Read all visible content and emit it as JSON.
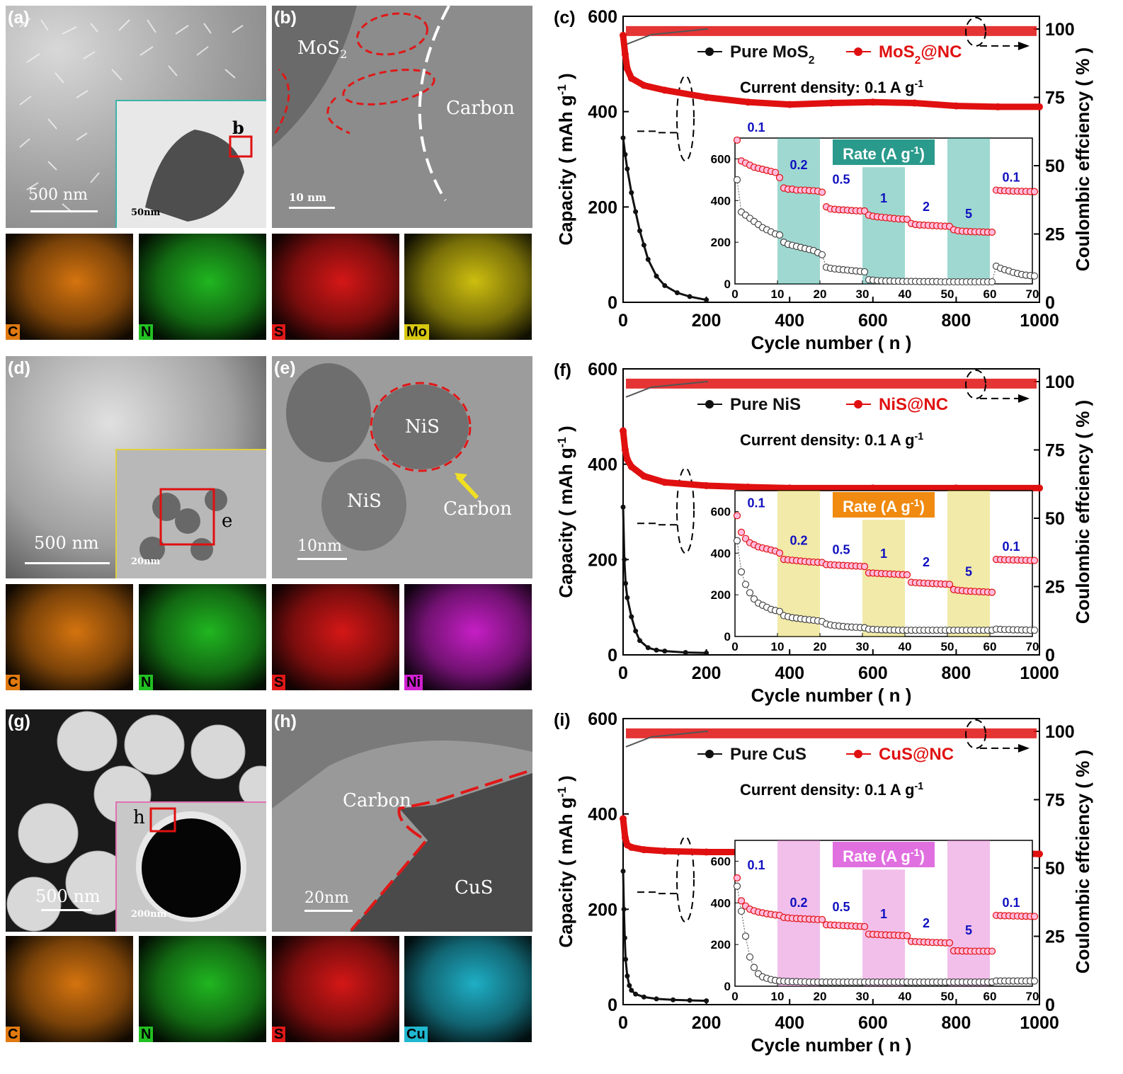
{
  "labels": {
    "a": "(a)",
    "b": "(b)",
    "c": "(c)",
    "d": "(d)",
    "e": "(e)",
    "f": "(f)",
    "g": "(g)",
    "h": "(h)",
    "i": "(i)"
  },
  "scale_bars": {
    "a": "500 nm",
    "a_inset": "50nm",
    "b": "10 nm",
    "d": "500 nm",
    "d_inset": "20nm",
    "e": "10nm",
    "g": "500 nm",
    "g_inset": "200nm",
    "h": "20nm"
  },
  "markers": {
    "a_box": "b",
    "d_box": "e",
    "g_box": "h"
  },
  "tem_text": {
    "b_mos2": "MoS2",
    "b_carbon": "Carbon",
    "e_nis1": "NiS",
    "e_nis2": "NiS",
    "e_carbon": "Carbon",
    "h_carbon": "Carbon",
    "h_cus": "CuS"
  },
  "eds": {
    "row1": [
      {
        "el": "C",
        "color": "#e07a10"
      },
      {
        "el": "N",
        "color": "#22c022"
      },
      {
        "el": "S",
        "color": "#e01818"
      },
      {
        "el": "Mo",
        "color": "#d8c810"
      }
    ],
    "row2": [
      {
        "el": "C",
        "color": "#e07a10"
      },
      {
        "el": "N",
        "color": "#22c022"
      },
      {
        "el": "S",
        "color": "#e01818"
      },
      {
        "el": "Ni",
        "color": "#d020d0"
      }
    ],
    "row3": [
      {
        "el": "C",
        "color": "#e07a10"
      },
      {
        "el": "N",
        "color": "#22c022"
      },
      {
        "el": "S",
        "color": "#e01818"
      },
      {
        "el": "Cu",
        "color": "#20b8d0"
      }
    ]
  },
  "chart_data": [
    {
      "id": "c",
      "type": "line",
      "xlabel": "Cycle number ( n )",
      "ylabel_left": "Capacity ( mAh g-1 )",
      "ylabel_right": "Coulombic effciency ( % )",
      "xlim": [
        0,
        1000
      ],
      "ylim": [
        0,
        600
      ],
      "xticks": [
        0,
        200,
        400,
        600,
        800,
        1000
      ],
      "yticks": [
        0,
        200,
        400,
        600
      ],
      "y2ticks": [
        0,
        25,
        50,
        75,
        100
      ],
      "legend": [
        "Pure MoS2",
        "MoS2@NC"
      ],
      "note": "Current density: 0.1 A g-1",
      "series": [
        {
          "name": "Pure MoS2",
          "color": "#111111",
          "x": [
            0,
            5,
            10,
            20,
            30,
            40,
            50,
            60,
            80,
            100,
            130,
            160,
            200
          ],
          "y": [
            345,
            310,
            280,
            230,
            190,
            150,
            120,
            90,
            55,
            35,
            20,
            12,
            5
          ]
        },
        {
          "name": "MoS2@NC",
          "color": "#e01010",
          "x": [
            0,
            5,
            10,
            20,
            50,
            100,
            200,
            300,
            400,
            500,
            600,
            700,
            800,
            900,
            1000
          ],
          "y": [
            560,
            520,
            490,
            470,
            455,
            445,
            430,
            420,
            415,
            418,
            420,
            418,
            412,
            410,
            410
          ]
        }
      ],
      "inset": {
        "title": "Rate (A g-1)",
        "xlim": [
          0,
          70
        ],
        "ylim": [
          0,
          700
        ],
        "xticks": [
          0,
          10,
          20,
          30,
          40,
          50,
          60,
          70
        ],
        "yticks": [
          0,
          200,
          400,
          600
        ],
        "rates": [
          "0.1",
          "0.2",
          "0.5",
          "1",
          "2",
          "5",
          "0.1"
        ],
        "pure": [
          500,
          345,
          330,
          315,
          300,
          285,
          270,
          260,
          250,
          240,
          235,
          200,
          190,
          185,
          180,
          175,
          170,
          165,
          160,
          150,
          140,
          80,
          75,
          72,
          70,
          68,
          66,
          64,
          62,
          60,
          58,
          20,
          18,
          16,
          15,
          14,
          14,
          13,
          13,
          12,
          12,
          12,
          12,
          11,
          11,
          11,
          11,
          11,
          10,
          10,
          10,
          10,
          10,
          10,
          10,
          10,
          10,
          10,
          10,
          10,
          10,
          85,
          75,
          68,
          62,
          55,
          50,
          45,
          42,
          40,
          38
        ],
        "nc": [
          690,
          590,
          580,
          570,
          560,
          555,
          550,
          545,
          540,
          535,
          510,
          460,
          455,
          455,
          450,
          450,
          450,
          448,
          447,
          445,
          440,
          370,
          360,
          358,
          356,
          355,
          354,
          352,
          351,
          350,
          350,
          330,
          325,
          322,
          320,
          318,
          316,
          314,
          312,
          311,
          310,
          290,
          285,
          283,
          282,
          281,
          280,
          279,
          278,
          277,
          276,
          260,
          255,
          253,
          252,
          251,
          250,
          250,
          249,
          248,
          248,
          450,
          448,
          447,
          446,
          445,
          445,
          444,
          444,
          443,
          443
        ]
      }
    },
    {
      "id": "f",
      "type": "line",
      "xlabel": "Cycle number ( n )",
      "ylabel_left": "Capacity ( mAh g-1 )",
      "ylabel_right": "Coulombic effciency ( % )",
      "xlim": [
        0,
        1000
      ],
      "ylim": [
        0,
        600
      ],
      "xticks": [
        0,
        200,
        400,
        600,
        800,
        1000
      ],
      "yticks": [
        0,
        200,
        400,
        600
      ],
      "y2ticks": [
        0,
        25,
        50,
        75,
        100
      ],
      "legend": [
        "Pure NiS",
        "NiS@NC"
      ],
      "note": "Current density: 0.1 A g-1",
      "series": [
        {
          "name": "Pure NiS",
          "color": "#111111",
          "x": [
            0,
            3,
            6,
            10,
            20,
            30,
            40,
            60,
            80,
            100,
            150,
            200
          ],
          "y": [
            310,
            200,
            150,
            120,
            80,
            50,
            30,
            15,
            10,
            8,
            5,
            4
          ]
        },
        {
          "name": "NiS@NC",
          "color": "#e01010",
          "x": [
            0,
            5,
            10,
            20,
            50,
            100,
            200,
            300,
            400,
            600,
            800,
            1000
          ],
          "y": [
            470,
            430,
            410,
            395,
            375,
            362,
            355,
            352,
            350,
            350,
            350,
            350
          ]
        }
      ],
      "inset": {
        "title": "Rate (A g-1)",
        "xlim": [
          0,
          70
        ],
        "ylim": [
          0,
          700
        ],
        "xticks": [
          0,
          10,
          20,
          30,
          40,
          50,
          60,
          70
        ],
        "yticks": [
          0,
          200,
          400,
          600
        ],
        "rates": [
          "0.1",
          "0.2",
          "0.5",
          "1",
          "2",
          "5",
          "0.1"
        ],
        "pure": [
          460,
          310,
          250,
          210,
          180,
          160,
          150,
          140,
          130,
          125,
          120,
          100,
          95,
          90,
          88,
          85,
          82,
          80,
          78,
          75,
          72,
          60,
          55,
          52,
          50,
          48,
          46,
          45,
          44,
          43,
          42,
          35,
          34,
          33,
          32,
          32,
          31,
          31,
          30,
          30,
          30,
          30,
          30,
          30,
          30,
          30,
          30,
          30,
          30,
          30,
          30,
          30,
          30,
          30,
          30,
          30,
          30,
          30,
          30,
          30,
          30,
          35,
          34,
          33,
          33,
          32,
          32,
          31,
          31,
          30,
          30
        ],
        "nc": [
          580,
          500,
          470,
          450,
          440,
          430,
          425,
          420,
          415,
          410,
          400,
          370,
          368,
          366,
          364,
          362,
          360,
          358,
          357,
          356,
          355,
          345,
          344,
          343,
          342,
          341,
          340,
          339,
          338,
          337,
          336,
          305,
          304,
          303,
          302,
          301,
          300,
          299,
          298,
          297,
          296,
          260,
          258,
          257,
          256,
          255,
          254,
          253,
          252,
          251,
          250,
          225,
          222,
          220,
          218,
          217,
          216,
          215,
          214,
          213,
          212,
          370,
          369,
          368,
          368,
          367,
          367,
          366,
          366,
          365,
          365
        ]
      }
    },
    {
      "id": "i",
      "type": "line",
      "xlabel": "Cycle number ( n )",
      "ylabel_left": "Capacity ( mAh g-1 )",
      "ylabel_right": "Coulombic effciency ( % )",
      "xlim": [
        0,
        1000
      ],
      "ylim": [
        0,
        600
      ],
      "xticks": [
        0,
        200,
        400,
        600,
        800,
        1000
      ],
      "yticks": [
        0,
        200,
        400,
        600
      ],
      "y2ticks": [
        0,
        25,
        50,
        75,
        100
      ],
      "legend": [
        "Pure CuS",
        "CuS@NC"
      ],
      "note": "Current density: 0.1 A g-1",
      "series": [
        {
          "name": "Pure CuS",
          "color": "#111111",
          "x": [
            0,
            2,
            4,
            6,
            10,
            15,
            20,
            30,
            50,
            80,
            120,
            160,
            200
          ],
          "y": [
            280,
            200,
            140,
            95,
            60,
            40,
            30,
            22,
            16,
            12,
            10,
            9,
            8
          ]
        },
        {
          "name": "CuS@NC",
          "color": "#e01010",
          "x": [
            0,
            5,
            10,
            20,
            50,
            100,
            200,
            300,
            400,
            600,
            800,
            900,
            1000
          ],
          "y": [
            390,
            350,
            335,
            330,
            325,
            322,
            320,
            320,
            320,
            320,
            320,
            318,
            316
          ]
        }
      ],
      "inset": {
        "title": "Rate (A g-1)",
        "xlim": [
          0,
          70
        ],
        "ylim": [
          0,
          700
        ],
        "xticks": [
          0,
          10,
          20,
          30,
          40,
          50,
          60,
          70
        ],
        "yticks": [
          0,
          200,
          400,
          600
        ],
        "rates": [
          "0.1",
          "0.2",
          "0.5",
          "1",
          "2",
          "5",
          "0.1"
        ],
        "pure": [
          480,
          360,
          240,
          140,
          90,
          60,
          45,
          38,
          32,
          28,
          25,
          24,
          23,
          22,
          22,
          21,
          21,
          20,
          20,
          20,
          20,
          20,
          20,
          20,
          20,
          20,
          20,
          20,
          20,
          20,
          20,
          20,
          20,
          20,
          20,
          20,
          20,
          20,
          20,
          20,
          20,
          20,
          20,
          20,
          20,
          20,
          20,
          20,
          20,
          20,
          20,
          20,
          20,
          20,
          20,
          20,
          20,
          20,
          20,
          20,
          20,
          25,
          25,
          25,
          25,
          25,
          25,
          25,
          25,
          25,
          25
        ],
        "nc": [
          520,
          410,
          385,
          370,
          362,
          356,
          352,
          348,
          345,
          342,
          340,
          330,
          328,
          326,
          325,
          324,
          323,
          322,
          321,
          320,
          320,
          295,
          294,
          293,
          292,
          291,
          290,
          289,
          288,
          287,
          286,
          250,
          249,
          248,
          247,
          246,
          245,
          245,
          244,
          243,
          242,
          215,
          214,
          213,
          212,
          211,
          210,
          210,
          209,
          208,
          208,
          170,
          170,
          169,
          169,
          168,
          168,
          168,
          168,
          168,
          168,
          340,
          339,
          338,
          338,
          337,
          337,
          336,
          336,
          335,
          335
        ]
      }
    }
  ]
}
